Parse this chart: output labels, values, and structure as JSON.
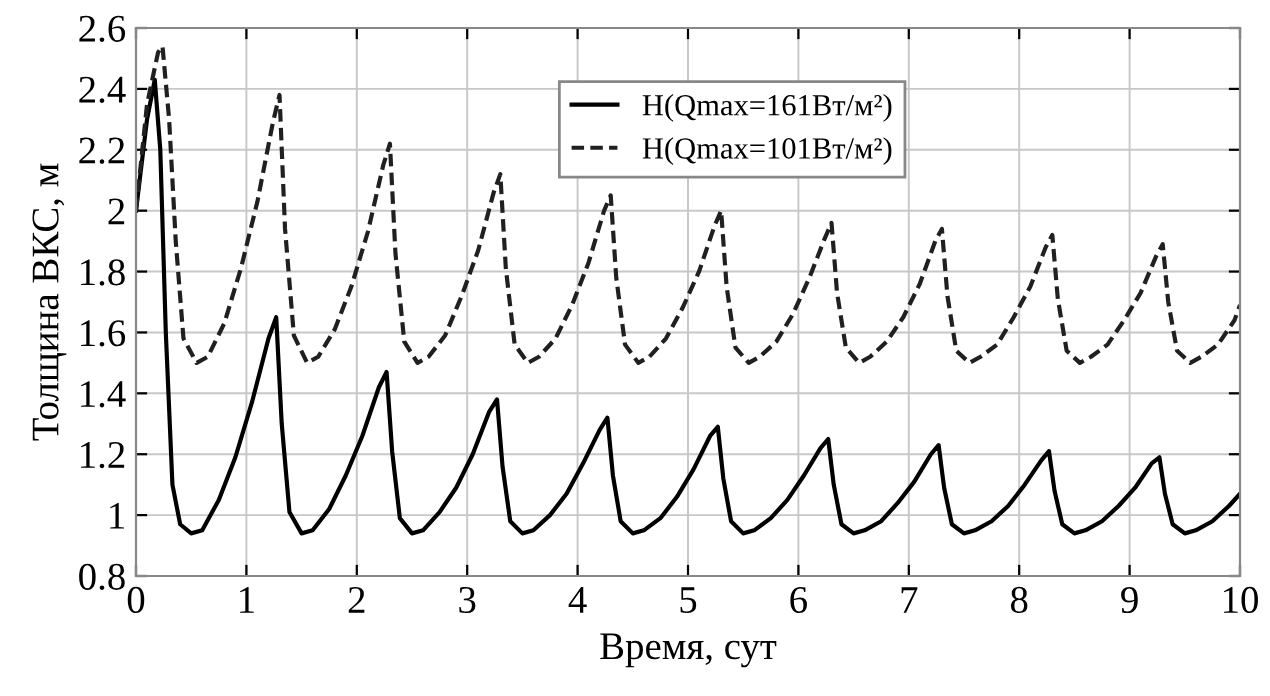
{
  "chart_data": {
    "type": "line",
    "xlabel": "Время, сут",
    "ylabel": "Толщина ВКС, м",
    "xlim": [
      0,
      10
    ],
    "ylim": [
      0.8,
      2.6
    ],
    "xticks": [
      0,
      1,
      2,
      3,
      4,
      5,
      6,
      7,
      8,
      9,
      10
    ],
    "yticks": [
      0.8,
      1,
      1.2,
      1.4,
      1.6,
      1.8,
      2,
      2.2,
      2.4,
      2.6
    ],
    "grid": true,
    "legend": "top",
    "marker": "none",
    "series": [
      {
        "name": "H(Qmax=161Вт/м²)",
        "color": "#000000",
        "line_style": "solid",
        "x": [
          0,
          0.1,
          0.17,
          0.22,
          0.27,
          0.33,
          0.4,
          0.5,
          0.6,
          0.75,
          0.9,
          1.05,
          1.2,
          1.27,
          1.32,
          1.39,
          1.5,
          1.6,
          1.75,
          1.9,
          2.05,
          2.2,
          2.27,
          2.32,
          2.39,
          2.5,
          2.6,
          2.75,
          2.9,
          3.05,
          3.2,
          3.27,
          3.32,
          3.39,
          3.5,
          3.6,
          3.75,
          3.9,
          4.05,
          4.2,
          4.27,
          4.32,
          4.39,
          4.5,
          4.6,
          4.75,
          4.9,
          5.05,
          5.2,
          5.27,
          5.32,
          5.39,
          5.5,
          5.6,
          5.75,
          5.9,
          6.05,
          6.2,
          6.27,
          6.32,
          6.39,
          6.5,
          6.6,
          6.75,
          6.9,
          7.05,
          7.2,
          7.27,
          7.32,
          7.39,
          7.5,
          7.6,
          7.75,
          7.9,
          8.05,
          8.2,
          8.27,
          8.32,
          8.39,
          8.5,
          8.6,
          8.75,
          8.9,
          9.05,
          9.2,
          9.27,
          9.32,
          9.39,
          9.5,
          9.6,
          9.75,
          9.9,
          10
        ],
        "values": [
          2.0,
          2.3,
          2.43,
          2.2,
          1.6,
          1.1,
          0.97,
          0.94,
          0.95,
          1.05,
          1.19,
          1.37,
          1.58,
          1.65,
          1.3,
          1.01,
          0.94,
          0.95,
          1.02,
          1.13,
          1.26,
          1.42,
          1.47,
          1.21,
          0.99,
          0.94,
          0.95,
          1.01,
          1.09,
          1.2,
          1.34,
          1.38,
          1.16,
          0.98,
          0.94,
          0.95,
          1.0,
          1.07,
          1.17,
          1.28,
          1.32,
          1.13,
          0.98,
          0.94,
          0.95,
          0.99,
          1.06,
          1.15,
          1.26,
          1.29,
          1.12,
          0.98,
          0.94,
          0.95,
          0.99,
          1.05,
          1.13,
          1.22,
          1.25,
          1.1,
          0.97,
          0.94,
          0.95,
          0.98,
          1.04,
          1.11,
          1.2,
          1.23,
          1.09,
          0.97,
          0.94,
          0.95,
          0.98,
          1.03,
          1.1,
          1.18,
          1.21,
          1.08,
          0.97,
          0.94,
          0.95,
          0.98,
          1.03,
          1.09,
          1.17,
          1.19,
          1.07,
          0.97,
          0.94,
          0.95,
          0.98,
          1.03,
          1.07
        ]
      },
      {
        "name": "H(Qmax=101Вт/м²)",
        "color": "#202020",
        "line_style": "dashed",
        "x": [
          0,
          0.1,
          0.2,
          0.24,
          0.3,
          0.36,
          0.43,
          0.55,
          0.65,
          0.8,
          0.95,
          1.1,
          1.24,
          1.3,
          1.35,
          1.43,
          1.55,
          1.65,
          1.8,
          1.95,
          2.1,
          2.24,
          2.3,
          2.35,
          2.43,
          2.55,
          2.65,
          2.8,
          2.95,
          3.1,
          3.24,
          3.3,
          3.35,
          3.43,
          3.55,
          3.65,
          3.8,
          3.95,
          4.1,
          4.24,
          4.3,
          4.35,
          4.43,
          4.55,
          4.65,
          4.8,
          4.95,
          5.1,
          5.24,
          5.3,
          5.35,
          5.43,
          5.55,
          5.65,
          5.8,
          5.95,
          6.1,
          6.24,
          6.3,
          6.35,
          6.43,
          6.55,
          6.65,
          6.8,
          6.95,
          7.1,
          7.24,
          7.3,
          7.35,
          7.43,
          7.55,
          7.65,
          7.8,
          7.95,
          8.1,
          8.24,
          8.3,
          8.35,
          8.43,
          8.55,
          8.65,
          8.8,
          8.95,
          9.1,
          9.24,
          9.3,
          9.35,
          9.43,
          9.55,
          9.65,
          9.8,
          9.95,
          10
        ],
        "values": [
          2.0,
          2.35,
          2.52,
          2.54,
          2.3,
          1.9,
          1.58,
          1.5,
          1.52,
          1.63,
          1.81,
          2.03,
          2.29,
          2.38,
          1.94,
          1.59,
          1.5,
          1.52,
          1.61,
          1.75,
          1.93,
          2.15,
          2.22,
          1.86,
          1.57,
          1.5,
          1.52,
          1.59,
          1.72,
          1.87,
          2.06,
          2.12,
          1.81,
          1.56,
          1.5,
          1.52,
          1.58,
          1.69,
          1.83,
          2.0,
          2.05,
          1.78,
          1.56,
          1.5,
          1.52,
          1.58,
          1.68,
          1.8,
          1.95,
          2.0,
          1.75,
          1.55,
          1.5,
          1.52,
          1.57,
          1.66,
          1.78,
          1.91,
          1.96,
          1.73,
          1.55,
          1.5,
          1.52,
          1.57,
          1.65,
          1.76,
          1.9,
          1.94,
          1.72,
          1.54,
          1.5,
          1.52,
          1.56,
          1.65,
          1.75,
          1.88,
          1.92,
          1.71,
          1.54,
          1.5,
          1.52,
          1.56,
          1.64,
          1.73,
          1.85,
          1.89,
          1.7,
          1.54,
          1.5,
          1.52,
          1.56,
          1.64,
          1.69
        ]
      }
    ]
  }
}
